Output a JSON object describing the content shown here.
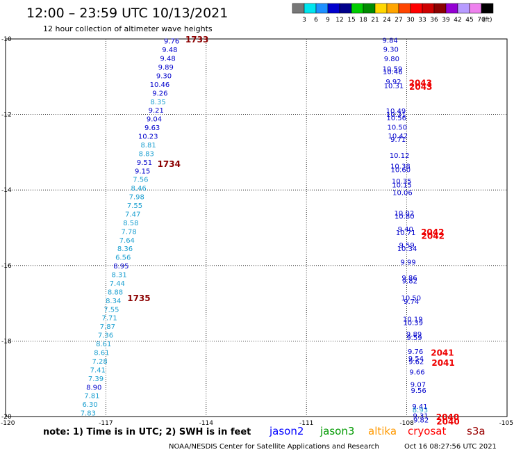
{
  "title": "12:00 – 23:59 UTC 10/13/2021",
  "subtitle": "12 hour collection of altimeter wave heights",
  "note": "note:  1) Time is in UTC; 2) SWH is in feet",
  "credit": "NOAA/NESDIS Center for Satellite Applications and Research",
  "generated": "Oct 16 08:27:56 UTC 2021",
  "colorbar": {
    "unit": "(ft)",
    "colors": [
      "#777777",
      "#00e5ee",
      "#1e90ff",
      "#0000cd",
      "#00008b",
      "#00cd00",
      "#008b00",
      "#ffd700",
      "#ffa500",
      "#ff4500",
      "#ff0000",
      "#cd0000",
      "#8b0000",
      "#9400d3",
      "#b79bff",
      "#ee82ee",
      "#000000"
    ],
    "labels": [
      "3",
      "6",
      "9",
      "12",
      "15",
      "18",
      "21",
      "24",
      "27",
      "30",
      "33",
      "36",
      "39",
      "42",
      "45",
      "70"
    ]
  },
  "legend": [
    {
      "name": "jason2",
      "color": "#0000ff"
    },
    {
      "name": "jason3",
      "color": "#009900"
    },
    {
      "name": "altika",
      "color": "#ff9900"
    },
    {
      "name": "cryosat",
      "color": "#ff0000"
    },
    {
      "name": "s3a",
      "color": "#990000"
    }
  ],
  "chart_data": {
    "type": "scatter",
    "xlim": [
      -120,
      -105
    ],
    "ylim": [
      -20,
      -10
    ],
    "x_ticks": [
      -120,
      -117,
      -114,
      -111,
      -108,
      -105
    ],
    "y_ticks": [
      -10,
      -12,
      -14,
      -16,
      -18,
      -20
    ],
    "grid": true,
    "colors": {
      "jason2": "#0000cc",
      "jason3_light": "#1a9fd0",
      "cryosat": "#ee0000",
      "s3a": "#8b0000"
    },
    "track_west": {
      "color_mode": "fade_light_blue",
      "lon_start": -114.8,
      "lat_start": -10.05,
      "lon_end": -117.3,
      "lat_end": -19.9,
      "values": [
        9.76,
        9.48,
        9.48,
        9.89,
        9.3,
        10.46,
        9.26,
        8.35,
        9.21,
        9.04,
        9.63,
        10.23,
        8.81,
        8.83,
        9.51,
        9.15,
        7.56,
        8.46,
        7.98,
        7.55,
        7.47,
        8.58,
        7.78,
        7.64,
        8.36,
        6.56,
        8.95,
        8.31,
        7.44,
        8.88,
        8.34,
        7.55,
        7.71,
        7.87,
        7.36,
        8.61,
        8.61,
        7.28,
        7.41,
        7.39,
        8.9,
        7.81,
        6.3,
        7.83
      ],
      "time_labels": [
        {
          "text": "1733",
          "lat": -10.0
        },
        {
          "text": "1734",
          "lat": -13.3
        },
        {
          "text": "1735",
          "lat": -16.85
        }
      ]
    },
    "track_east": {
      "lon_start": -108.5,
      "lat_start": -10.0,
      "lon_end": -107.6,
      "lat_end": -19.8,
      "points": [
        {
          "lat": -10.03,
          "v": 9.84
        },
        {
          "lat": -10.27,
          "v": 9.3
        },
        {
          "lat": -10.52,
          "v": 9.8
        },
        {
          "lat": -10.78,
          "v": 10.59
        },
        {
          "lat": -10.86,
          "v": 10.46
        },
        {
          "lat": -11.12,
          "v": 9.92
        },
        {
          "lat": -11.23,
          "v": 10.31
        },
        {
          "lat": -11.9,
          "v": 10.49
        },
        {
          "lat": -11.99,
          "v": 10.31
        },
        {
          "lat": -12.08,
          "v": 10.56
        },
        {
          "lat": -12.33,
          "v": 10.5
        },
        {
          "lat": -12.56,
          "v": 10.42
        },
        {
          "lat": -12.65,
          "v": 9.71
        },
        {
          "lat": -13.08,
          "v": 10.12
        },
        {
          "lat": -13.36,
          "v": 10.38
        },
        {
          "lat": -13.45,
          "v": 10.6
        },
        {
          "lat": -13.76,
          "v": 10.35
        },
        {
          "lat": -13.86,
          "v": 10.15
        },
        {
          "lat": -14.06,
          "v": 10.06
        },
        {
          "lat": -14.6,
          "v": 10.02
        },
        {
          "lat": -14.69,
          "v": 10.8
        },
        {
          "lat": -15.03,
          "v": 9.4
        },
        {
          "lat": -15.12,
          "v": 10.71
        },
        {
          "lat": -15.45,
          "v": 9.59
        },
        {
          "lat": -15.54,
          "v": 10.34
        },
        {
          "lat": -15.9,
          "v": 9.99
        },
        {
          "lat": -16.32,
          "v": 9.86
        },
        {
          "lat": -16.4,
          "v": 9.82
        },
        {
          "lat": -16.85,
          "v": 10.5
        },
        {
          "lat": -16.94,
          "v": 9.74
        },
        {
          "lat": -17.41,
          "v": 10.19
        },
        {
          "lat": -17.5,
          "v": 10.39
        },
        {
          "lat": -17.81,
          "v": 9.89
        },
        {
          "lat": -17.9,
          "v": 9.59
        },
        {
          "lat": -18.27,
          "v": 9.76
        },
        {
          "lat": -18.45,
          "v": 9.54
        },
        {
          "lat": -18.54,
          "v": 9.62
        },
        {
          "lat": -18.81,
          "v": 9.66
        },
        {
          "lat": -19.14,
          "v": 9.07
        },
        {
          "lat": -19.3,
          "v": 9.56
        },
        {
          "lat": -19.72,
          "v": 9.41
        },
        {
          "lat": -19.82,
          "v": 8.93
        },
        {
          "lat": -19.97,
          "v": 9.31
        },
        {
          "lat": -20.08,
          "v": 9.82
        }
      ],
      "time_labels": [
        {
          "text": "2043",
          "lat": -11.15
        },
        {
          "text": "2043",
          "lat": -11.25
        },
        {
          "text": "2042",
          "lat": -15.1
        },
        {
          "text": "2042",
          "lat": -15.2
        },
        {
          "text": "2041",
          "lat": -18.3
        },
        {
          "text": "2041",
          "lat": -18.56
        },
        {
          "text": "2040",
          "lat": -20.0
        },
        {
          "text": "2040",
          "lat": -20.12
        }
      ]
    }
  }
}
